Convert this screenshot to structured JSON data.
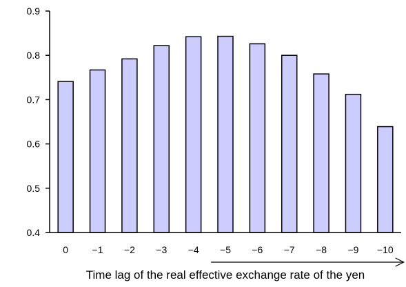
{
  "chart_data": {
    "type": "bar",
    "categories": [
      "0",
      "−1",
      "−2",
      "−3",
      "−4",
      "−5",
      "−6",
      "−7",
      "−8",
      "−9",
      "−10"
    ],
    "values": [
      0.741,
      0.767,
      0.792,
      0.822,
      0.842,
      0.843,
      0.826,
      0.8,
      0.758,
      0.712,
      0.639
    ],
    "title": "",
    "xlabel": "Time lag of the real effective exchange rate of the yen",
    "ylabel": "",
    "ylim": [
      0.4,
      0.9
    ],
    "yticks": [
      "0.4",
      "0.5",
      "0.6",
      "0.7",
      "0.8",
      "0.9"
    ],
    "grid": false,
    "legend": "none",
    "colors": {
      "bar_fill": "#ccccff",
      "bar_stroke": "#000000",
      "axis": "#000000"
    },
    "annotations": [
      {
        "type": "arrow",
        "direction": "right",
        "from_category": "−5",
        "to_category": "−10"
      }
    ]
  }
}
